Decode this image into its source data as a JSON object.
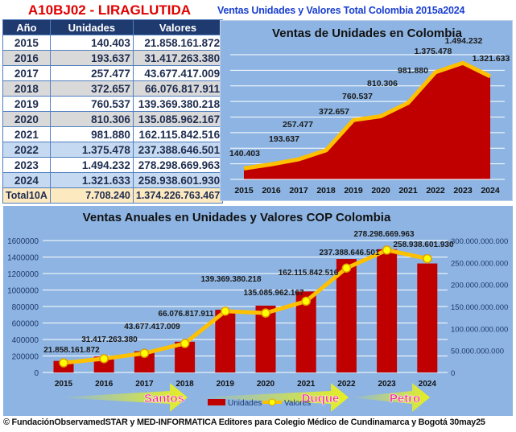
{
  "header": {
    "drug_title": "A10BJ02 - LIRAGLUTIDA",
    "section_title": "Ventas Unidades y Valores Total Colombia 2015a2024"
  },
  "table": {
    "columns": [
      "Año",
      "Unidades",
      "Valores"
    ],
    "rows": [
      {
        "year": "2015",
        "units": "140.403",
        "values": "21.858.161.872"
      },
      {
        "year": "2016",
        "units": "193.637",
        "values": "31.417.263.380"
      },
      {
        "year": "2017",
        "units": "257.477",
        "values": "43.677.417.009"
      },
      {
        "year": "2018",
        "units": "372.657",
        "values": "66.076.817.911"
      },
      {
        "year": "2019",
        "units": "760.537",
        "values": "139.369.380.218"
      },
      {
        "year": "2020",
        "units": "810.306",
        "values": "135.085.962.167"
      },
      {
        "year": "2021",
        "units": "981.880",
        "values": "162.115.842.516"
      },
      {
        "year": "2022",
        "units": "1.375.478",
        "values": "237.388.646.501"
      },
      {
        "year": "2023",
        "units": "1.494.232",
        "values": "278.298.669.963"
      },
      {
        "year": "2024",
        "units": "1.321.633",
        "values": "258.938.601.930"
      }
    ],
    "total": {
      "label": "Total10A",
      "units": "7.708.240",
      "values": "1.374.226.763.467"
    }
  },
  "chart_data": [
    {
      "type": "area",
      "title": "Ventas de Unidades en Colombia",
      "categories": [
        "2015",
        "2016",
        "2017",
        "2018",
        "2019",
        "2020",
        "2021",
        "2022",
        "2023",
        "2024"
      ],
      "values": [
        140403,
        193637,
        257477,
        372657,
        760537,
        810306,
        981880,
        1375478,
        1494232,
        1321633
      ],
      "data_labels": [
        "140.403",
        "193.637",
        "257.477",
        "372.657",
        "760.537",
        "810.306",
        "981.880",
        "1.375.478",
        "1.494.232",
        "1.321.633"
      ],
      "ylim": [
        0,
        1600000
      ],
      "grid": true,
      "colors": {
        "fill": "#c00000",
        "line": "#ffc000",
        "background": "#8db4e2"
      }
    },
    {
      "type": "bar+line",
      "title": "Ventas Anuales en Unidades y Valores COP Colombia",
      "categories": [
        "2015",
        "2016",
        "2017",
        "2018",
        "2019",
        "2020",
        "2021",
        "2022",
        "2023",
        "2024"
      ],
      "series": [
        {
          "name": "Unidades",
          "type": "bar",
          "axis": "left",
          "values": [
            140403,
            193637,
            257477,
            372657,
            760537,
            810306,
            981880,
            1375478,
            1494232,
            1321633
          ]
        },
        {
          "name": "Valores",
          "type": "line",
          "axis": "right",
          "values": [
            21858161872,
            31417263380,
            43677417009,
            66076817911,
            139369380218,
            135085962167,
            162115842516,
            237388646501,
            278298669963,
            258938601930
          ],
          "data_labels": [
            "21.858.161.872",
            "31.417.263.380",
            "43.677.417.009",
            "66.076.817.911",
            "139.369.380.218",
            "135.085.962.167",
            "162.115.842.516",
            "237.388.646.501",
            "278.298.669.963",
            "258.938.601.930"
          ]
        }
      ],
      "left_ticks": [
        "0",
        "200000",
        "400000",
        "600000",
        "800000",
        "1000000",
        "1200000",
        "1400000",
        "1600000"
      ],
      "right_ticks": [
        "0",
        "50.000.000.000",
        "100.000.000.000",
        "150.000.000.000",
        "200.000.000.000",
        "250.000.000.000",
        "300.000.000.000"
      ],
      "ylim_left": [
        0,
        1600000
      ],
      "ylim_right": [
        0,
        300000000000
      ],
      "grid": true,
      "legend": "bottom-center",
      "annotations": [
        "Santos",
        "Duque",
        "Petro"
      ],
      "colors": {
        "bar": "#c00000",
        "line": "#ffc000",
        "marker": "#ffff00",
        "annotation_text": "#ff1493",
        "arrow": "#e6f020"
      }
    }
  ],
  "footer": "© FundaciónObservamedSTAR y MED-INFORMATICA Editores para Colegio Médico de Cundinamarca y Bogotá 30may25"
}
